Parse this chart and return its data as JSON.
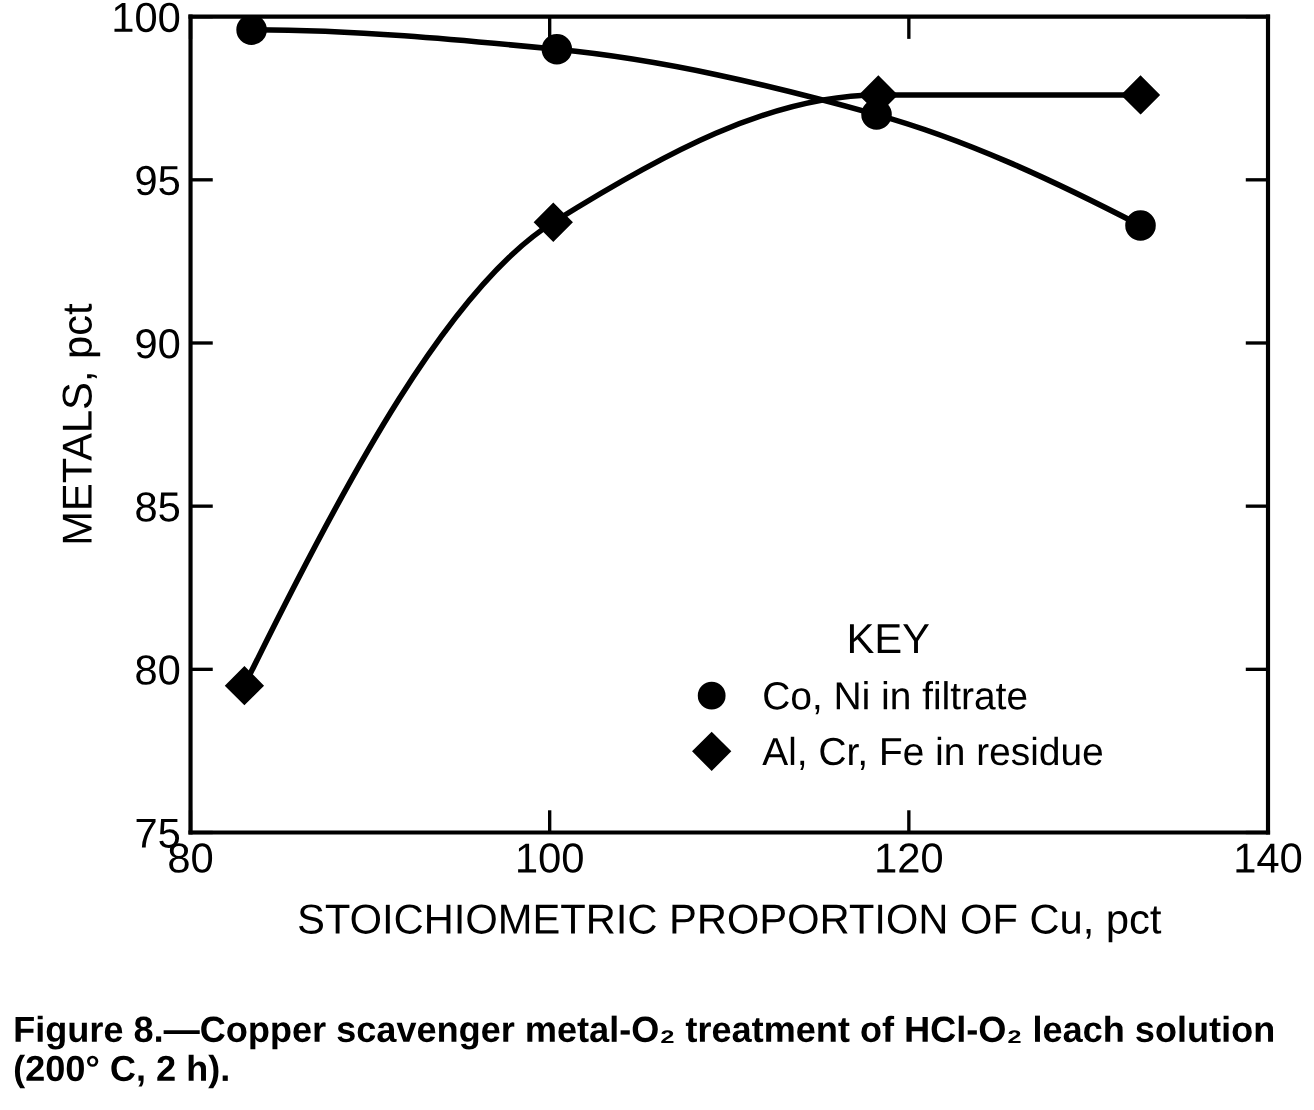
{
  "chart_data": {
    "type": "line",
    "xlabel": "STOICHIOMETRIC PROPORTION OF Cu, pct",
    "ylabel": "METALS, pct",
    "legend_title": "KEY",
    "legend": "bottom right",
    "series": [
      {
        "name": "Co, Ni in filtrate",
        "color": "#000000",
        "marker": "circle",
        "x": [
          83.4,
          100.4,
          118.2,
          132.9
        ],
        "values": [
          99.6,
          99.0,
          97.0,
          93.6
        ]
      },
      {
        "name": "Al, Cr, Fe in residue",
        "color": "#000000",
        "marker": "diamond",
        "x": [
          83.0,
          100.2,
          118.3,
          132.9
        ],
        "values": [
          79.5,
          93.7,
          97.6,
          97.6
        ]
      }
    ],
    "xlim": [
      80,
      140
    ],
    "xticks": [
      80,
      100,
      120,
      140
    ],
    "ylim": [
      75,
      100
    ],
    "yticks": [
      75,
      80,
      85,
      90,
      95,
      100
    ],
    "grid": false,
    "annotations": [
      "Figure 8.—Copper scavenger metal-O₂ treatment of HCl-O₂ leach solution (200° C, 2 h)."
    ]
  }
}
